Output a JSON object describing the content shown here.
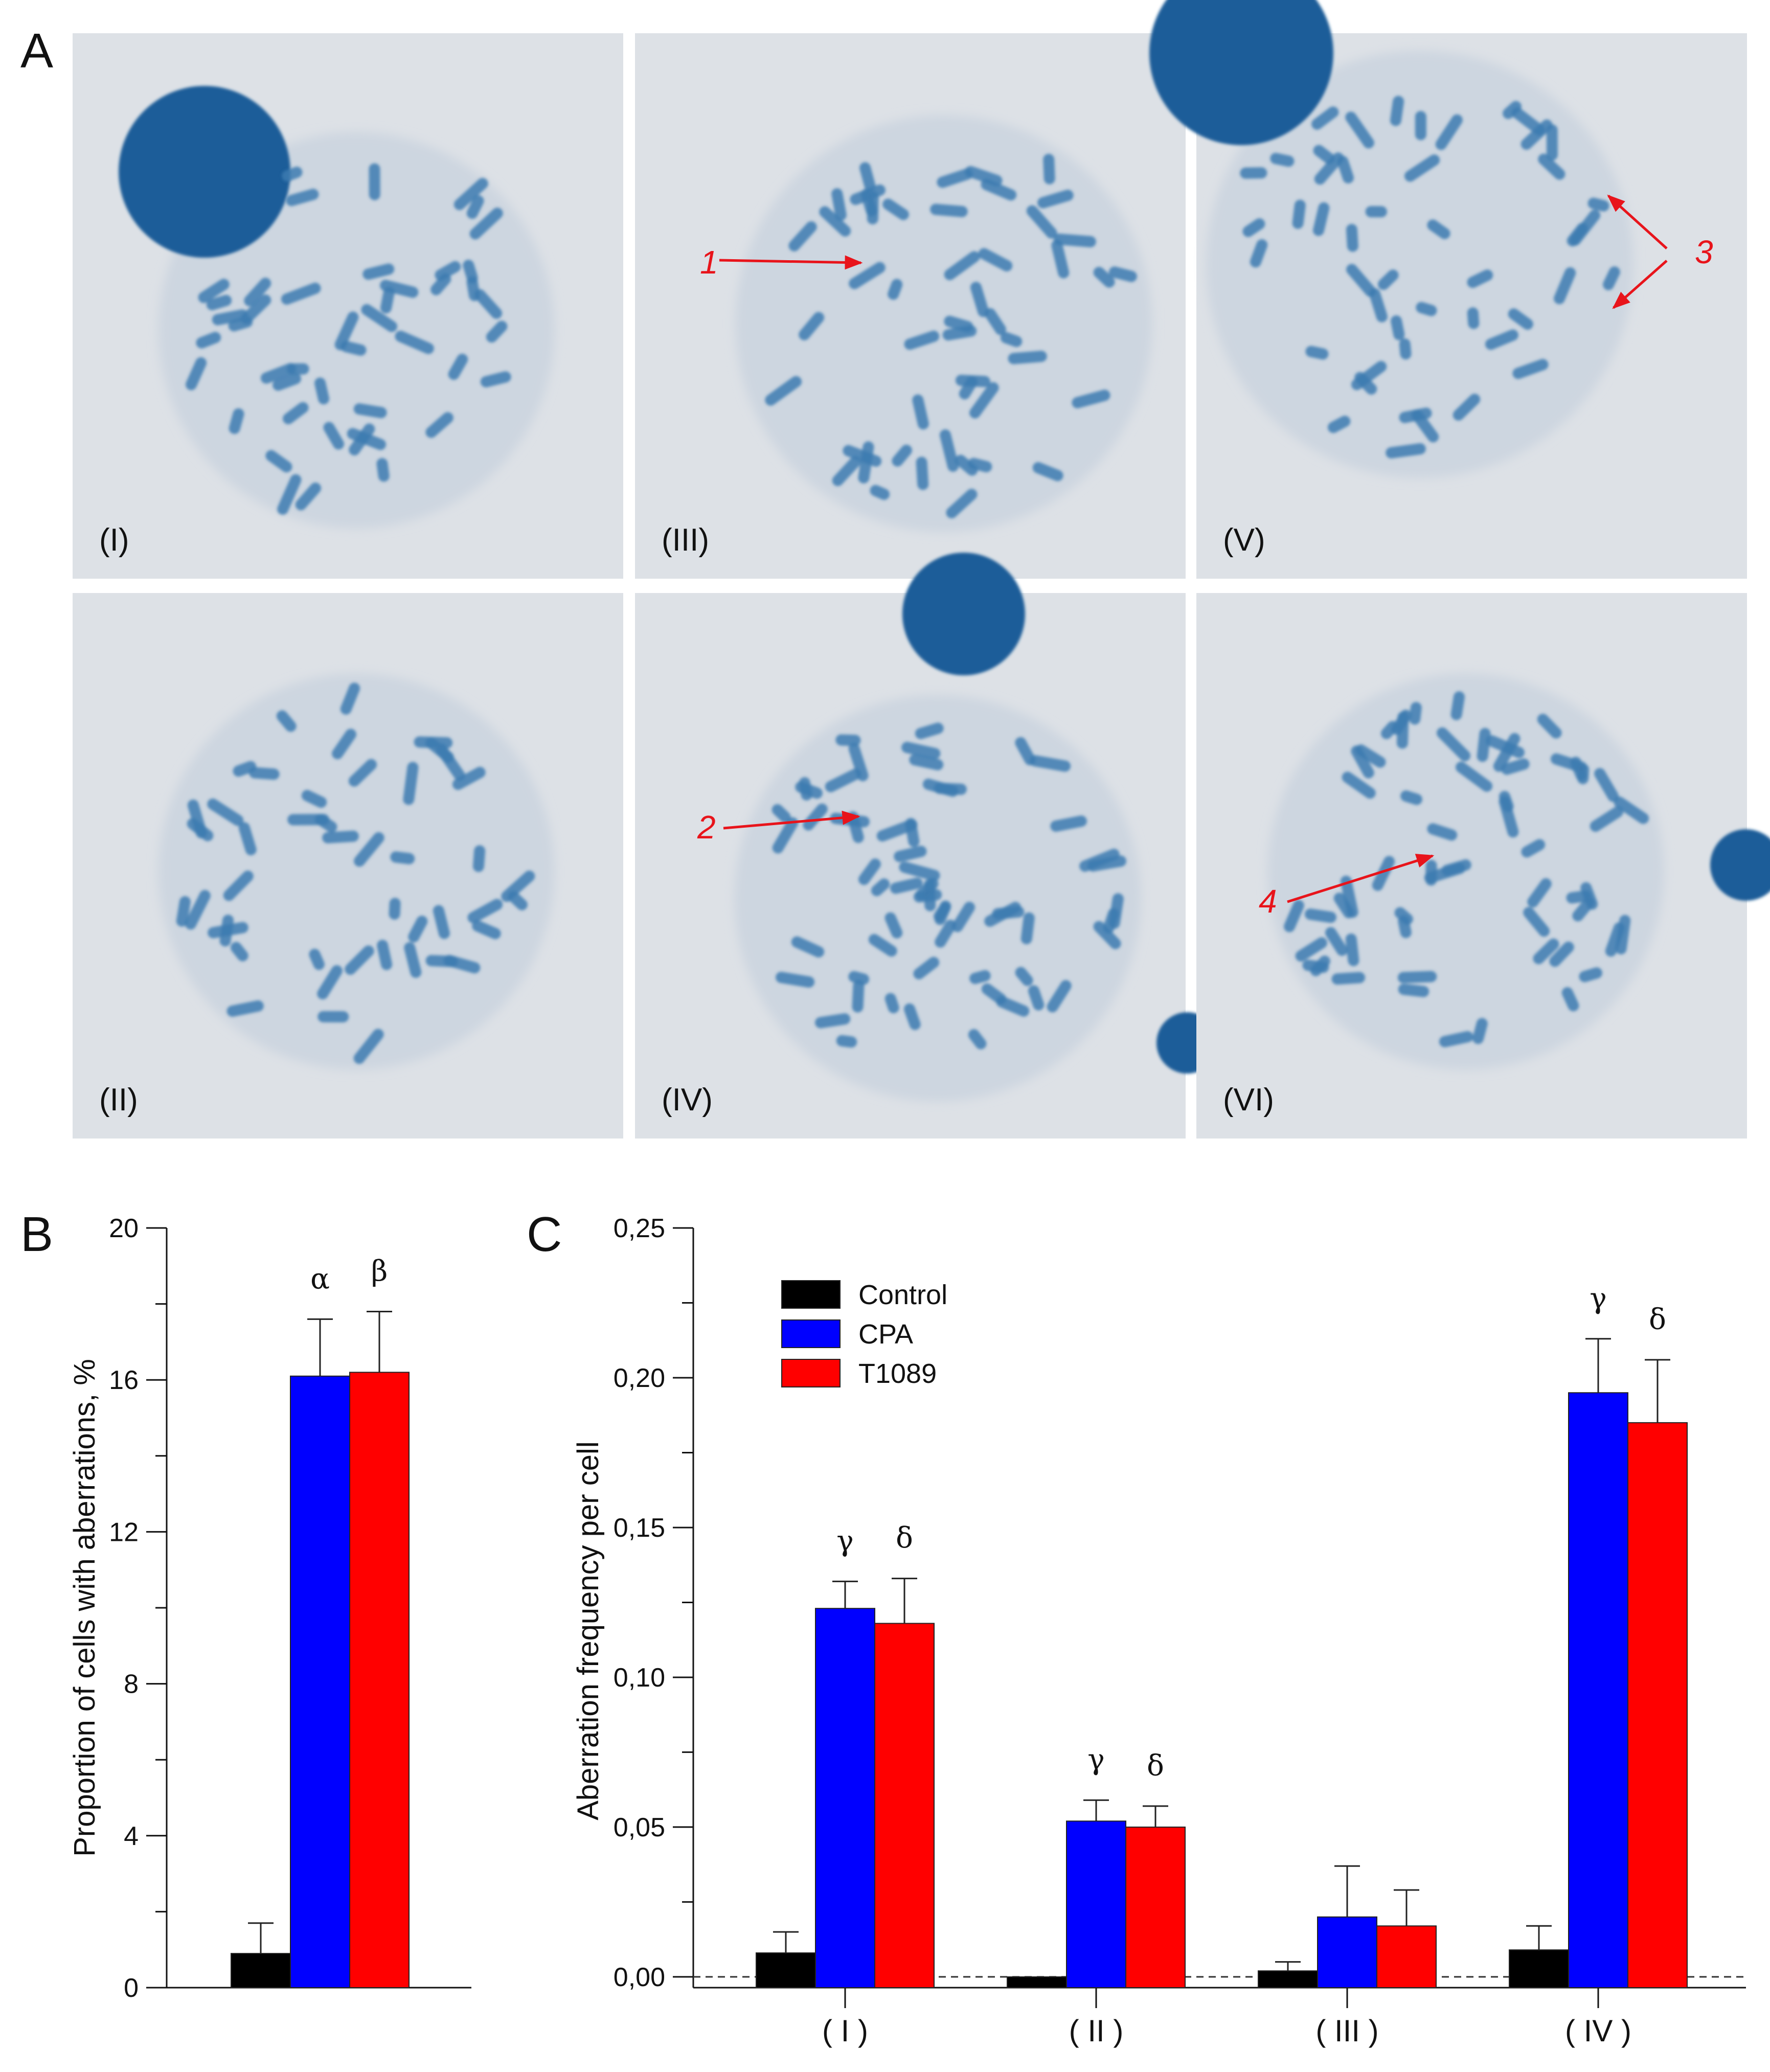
{
  "panel_letters": {
    "a": "A",
    "b": "B",
    "c": "C"
  },
  "micrographs": [
    {
      "label": "(I)"
    },
    {
      "label": "(III)",
      "annotation": "1"
    },
    {
      "label": "(V)",
      "annotation": "3"
    },
    {
      "label": "(II)"
    },
    {
      "label": "(IV)",
      "annotation": "2"
    },
    {
      "label": "(VI)",
      "annotation": "4"
    }
  ],
  "colors": {
    "control": "#000000",
    "cpa": "#0000ff",
    "t1089": "#ff0000",
    "annotation": "#e8141b",
    "chromosome": "#3d7bb0",
    "slide": "#dde1e6"
  },
  "chart_data": [
    {
      "type": "bar",
      "panel": "B",
      "ylabel": "Proportion of cells with aberrations, %",
      "ylim": [
        0,
        20
      ],
      "yticks": [
        "0",
        "4",
        "8",
        "12",
        "16",
        "20"
      ],
      "categories": [
        ""
      ],
      "series": [
        {
          "values": [
            0.9
          ],
          "errors": [
            0.8
          ],
          "color": "#000000"
        },
        {
          "values": [
            16.1
          ],
          "errors": [
            1.5
          ],
          "color": "#0000ff",
          "marks": [
            "α"
          ]
        },
        {
          "values": [
            16.2
          ],
          "errors": [
            1.6
          ],
          "color": "#ff0000",
          "marks": [
            "β"
          ]
        }
      ]
    },
    {
      "type": "bar",
      "panel": "C",
      "ylabel": "Aberration frequency per cell",
      "ylim": [
        -0.0036,
        0.25
      ],
      "yticks": [
        "0,00",
        "0,05",
        "0,10",
        "0,15",
        "0,20",
        "0,25"
      ],
      "reference_line": 0,
      "legend_position": "top-left",
      "categories": [
        "( I )",
        "( II )",
        "( III )",
        "( IV )"
      ],
      "series": [
        {
          "name": "Control",
          "values": [
            0.008,
            0.0,
            0.002,
            0.009
          ],
          "errors": [
            0.007,
            0,
            0.003,
            0.008
          ],
          "color": "#000000",
          "marks": [
            "",
            "",
            "",
            ""
          ]
        },
        {
          "name": "CPA",
          "values": [
            0.123,
            0.052,
            0.02,
            0.195
          ],
          "errors": [
            0.009,
            0.007,
            0.017,
            0.018
          ],
          "color": "#0000ff",
          "marks": [
            "γ",
            "γ",
            "",
            "γ"
          ]
        },
        {
          "name": "T1089",
          "values": [
            0.118,
            0.05,
            0.017,
            0.185
          ],
          "errors": [
            0.015,
            0.007,
            0.012,
            0.021
          ],
          "color": "#ff0000",
          "marks": [
            "δ",
            "δ",
            "",
            "δ"
          ]
        }
      ]
    }
  ]
}
